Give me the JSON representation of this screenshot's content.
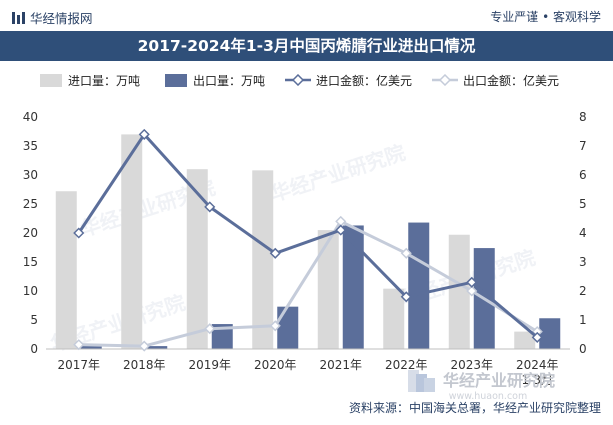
{
  "header": {
    "brand": "华经情报网",
    "tagline": "专业严谨 • 客观科学"
  },
  "title": "2017-2024年1-3月中国丙烯腈行业进出口情况",
  "watermark": "华经产业研究院",
  "footer": {
    "source": "资料来源：中国海关总署，华经产业研究院整理",
    "logo_text": "华经产业研究院",
    "logo_url": "www.huaon.com"
  },
  "colors": {
    "import_qty": "#d9d9d9",
    "export_qty": "#5b6e9a",
    "import_amt": "#5b6e9a",
    "export_amt": "#c5ccda",
    "header": "#2f4f79"
  },
  "chart_data": {
    "type": "bar",
    "title": "2017-2024年1-3月中国丙烯腈行业进出口情况",
    "categories": [
      "2017年",
      "2018年",
      "2019年",
      "2020年",
      "2021年",
      "2022年",
      "2023年",
      "2024年\n1-3月"
    ],
    "series": [
      {
        "name": "进口量：万吨",
        "type": "bar",
        "axis": "left",
        "values": [
          27.2,
          37.0,
          31.0,
          30.8,
          20.5,
          10.4,
          19.7,
          3.0
        ]
      },
      {
        "name": "出口量：万吨",
        "type": "bar",
        "axis": "left",
        "values": [
          0.8,
          0.5,
          4.3,
          7.3,
          21.3,
          21.8,
          17.4,
          5.3
        ]
      },
      {
        "name": "进口金额：亿美元",
        "type": "line",
        "axis": "right",
        "values": [
          4.0,
          7.4,
          4.9,
          3.3,
          4.1,
          1.8,
          2.3,
          0.4
        ]
      },
      {
        "name": "出口金额：亿美元",
        "type": "line",
        "axis": "right",
        "values": [
          0.15,
          0.1,
          0.7,
          0.8,
          4.4,
          3.3,
          2.0,
          0.6
        ]
      }
    ],
    "y_left": {
      "min": 0,
      "max": 40,
      "ticks": [
        0,
        5,
        10,
        15,
        20,
        25,
        30,
        35,
        40
      ]
    },
    "y_right": {
      "min": 0,
      "max": 8,
      "ticks": [
        0,
        1,
        2,
        3,
        4,
        5,
        6,
        7,
        8
      ]
    },
    "legend_position": "top",
    "grid": false
  }
}
